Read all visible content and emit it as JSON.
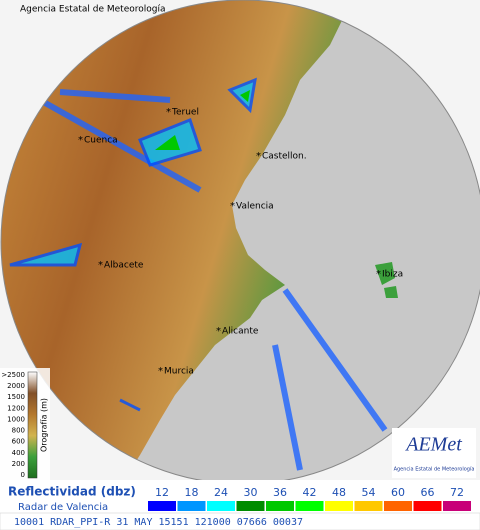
{
  "header": {
    "agency": "Agencia Estatal de Meteorología"
  },
  "map": {
    "cities": [
      {
        "label": "Teruel"
      },
      {
        "label": "Cuenca"
      },
      {
        "label": "Castellon."
      },
      {
        "label": "Valencia"
      },
      {
        "label": "Albacete"
      },
      {
        "label": "Ibiza"
      },
      {
        "label": "Alicante"
      },
      {
        "label": "Murcia"
      }
    ]
  },
  "elevation_legend": {
    "title": "Orografía (m)",
    "labels": [
      ">2500",
      "2000",
      "1500",
      "1200",
      "1000",
      "800",
      "600",
      "400",
      "200",
      "0"
    ]
  },
  "logo": {
    "name": "AEMet",
    "subtitle": "Agencia Estatal de Meteorología"
  },
  "legend": {
    "title": "Reflectividad (dbz)",
    "subtitle": "Radar de Valencia",
    "levels": [
      {
        "value": 12,
        "color": "#0000ff"
      },
      {
        "value": 18,
        "color": "#0096ff"
      },
      {
        "value": 24,
        "color": "#00ffff"
      },
      {
        "value": 30,
        "color": "#008c00"
      },
      {
        "value": 36,
        "color": "#00c800"
      },
      {
        "value": 42,
        "color": "#00ff00"
      },
      {
        "value": 48,
        "color": "#ffff00"
      },
      {
        "value": 54,
        "color": "#ffc800"
      },
      {
        "value": 60,
        "color": "#ff6400"
      },
      {
        "value": 66,
        "color": "#ff0000"
      },
      {
        "value": 72,
        "color": "#c80078"
      }
    ]
  },
  "status_bar": {
    "text": "10001 RDAR_PPI-R  31 MAY 15151 121000 07666 00037"
  }
}
